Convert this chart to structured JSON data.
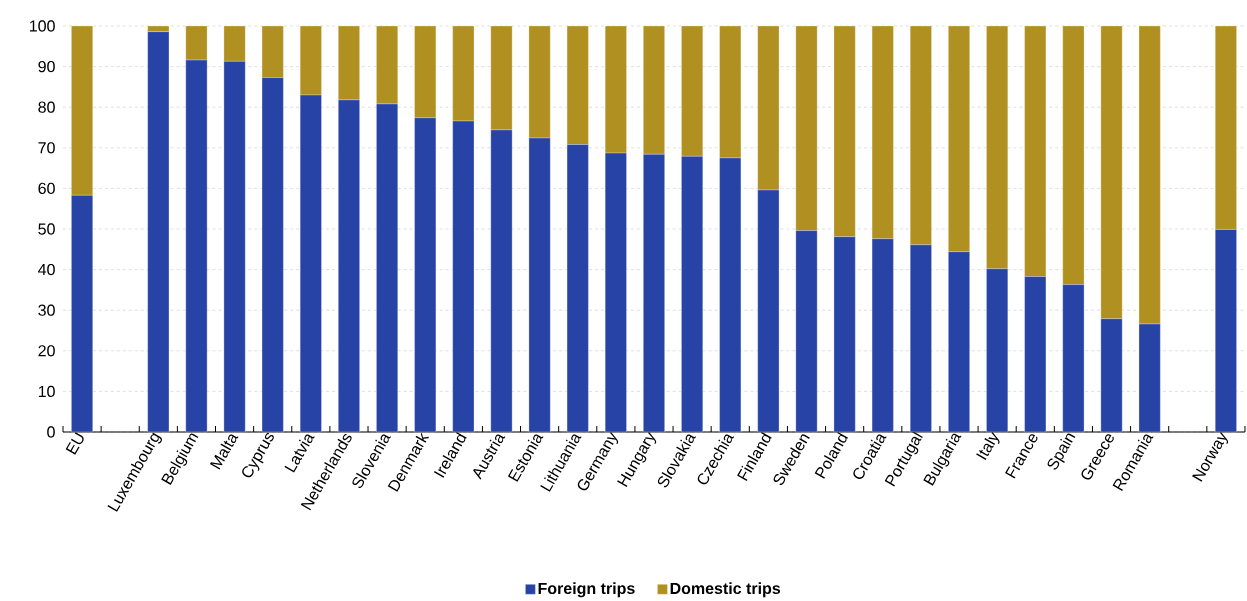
{
  "chart_data": {
    "type": "bar",
    "stacked": true,
    "categories": [
      "EU",
      null,
      "Luxembourg",
      "Belgium",
      "Malta",
      "Cyprus",
      "Latvia",
      "Netherlands",
      "Slovenia",
      "Denmark",
      "Ireland",
      "Austria",
      "Estonia",
      "Lithuania",
      "Germany",
      "Hungary",
      "Slovakia",
      "Czechia",
      "Finland",
      "Sweden",
      "Poland",
      "Croatia",
      "Portugal",
      "Bulgaria",
      "Italy",
      "France",
      "Spain",
      "Greece",
      "Romania",
      null,
      "Norway"
    ],
    "series": [
      {
        "name": "Foreign trips",
        "color": "#2743a5",
        "values": [
          58.3,
          null,
          98.6,
          91.6,
          91.3,
          87.3,
          83.0,
          81.8,
          80.8,
          77.4,
          76.6,
          74.4,
          72.4,
          70.8,
          68.7,
          68.4,
          67.9,
          67.5,
          59.6,
          49.6,
          48.1,
          47.6,
          46.1,
          44.4,
          40.2,
          38.3,
          36.3,
          27.9,
          26.6,
          null,
          49.9
        ]
      },
      {
        "name": "Domestic trips",
        "color": "#b09020",
        "values": [
          41.7,
          null,
          1.4,
          8.4,
          8.7,
          12.7,
          17.0,
          18.2,
          19.2,
          22.6,
          23.4,
          25.6,
          27.6,
          29.2,
          31.3,
          31.6,
          32.1,
          32.5,
          40.4,
          50.4,
          51.9,
          52.4,
          53.9,
          55.6,
          59.8,
          61.7,
          63.7,
          72.1,
          73.4,
          null,
          50.1
        ]
      }
    ],
    "ylim": [
      0,
      100
    ],
    "yticks": [
      0,
      10,
      20,
      30,
      40,
      50,
      60,
      70,
      80,
      90,
      100
    ],
    "grid": "y",
    "legend": "bottom"
  }
}
